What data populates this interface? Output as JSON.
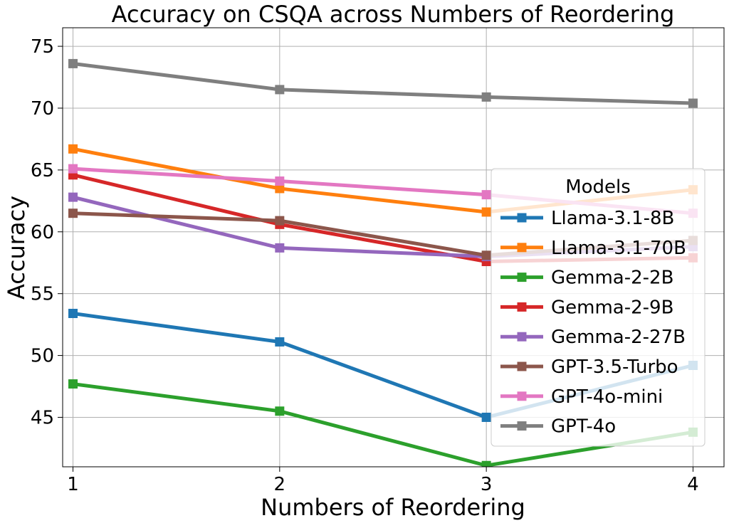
{
  "chart_data": {
    "type": "line",
    "title": "Accuracy on CSQA across Numbers of Reordering",
    "xlabel": "Numbers of Reordering",
    "ylabel": "Accuracy",
    "x": [
      1,
      2,
      3,
      4
    ],
    "x_ticks": [
      "1",
      "2",
      "3",
      "4"
    ],
    "xlim": [
      0.95,
      4.15
    ],
    "ylim": [
      41,
      76.5
    ],
    "y_ticks": [
      45,
      50,
      55,
      60,
      65,
      70,
      75
    ],
    "grid": true,
    "legend": {
      "title": "Models",
      "placement": "center-right"
    },
    "series": [
      {
        "name": "Llama-3.1-8B",
        "color": "#1f77b4",
        "values": [
          53.4,
          51.1,
          45.0,
          49.2
        ]
      },
      {
        "name": "Llama-3.1-70B",
        "color": "#ff7f0e",
        "values": [
          66.7,
          63.5,
          61.6,
          63.4
        ]
      },
      {
        "name": "Gemma-2-2B",
        "color": "#2ca02c",
        "values": [
          47.7,
          45.5,
          41.1,
          43.8
        ]
      },
      {
        "name": "Gemma-2-9B",
        "color": "#d62728",
        "values": [
          64.6,
          60.6,
          57.6,
          57.9
        ]
      },
      {
        "name": "Gemma-2-27B",
        "color": "#9467bd",
        "values": [
          62.8,
          58.7,
          58.0,
          58.8
        ]
      },
      {
        "name": "GPT-3.5-Turbo",
        "color": "#8c564b",
        "values": [
          61.5,
          60.9,
          58.1,
          59.3
        ]
      },
      {
        "name": "GPT-4o-mini",
        "color": "#e377c2",
        "values": [
          65.1,
          64.1,
          63.0,
          61.5
        ]
      },
      {
        "name": "GPT-4o",
        "color": "#7f7f7f",
        "values": [
          73.6,
          71.5,
          70.9,
          70.4
        ]
      }
    ]
  }
}
